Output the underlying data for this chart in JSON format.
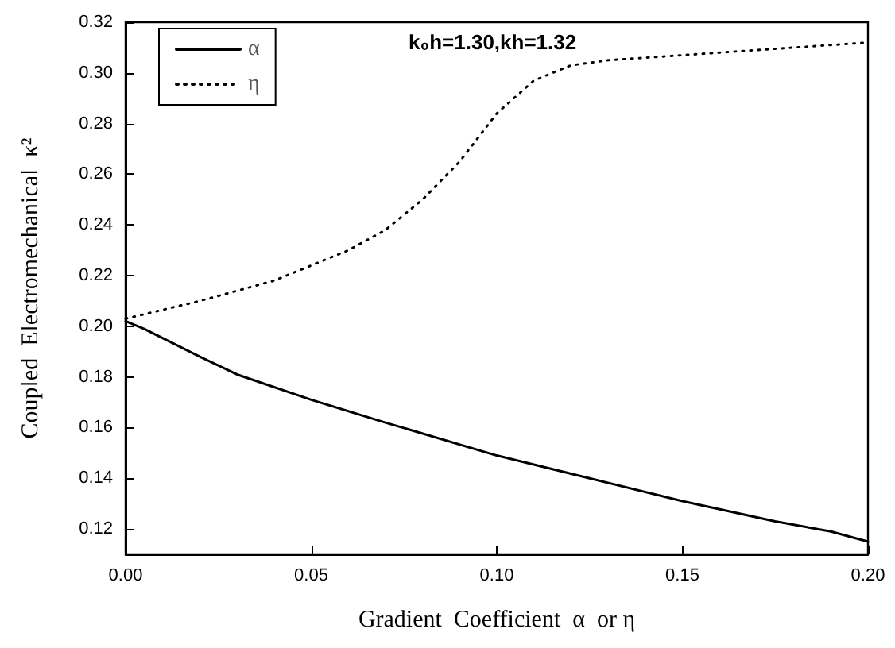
{
  "chart_data": {
    "type": "line",
    "xlabel": "Gradient  Coefficient  α  or η",
    "ylabel": "Coupled  Electromechanical  κ²",
    "annotations": [
      "k₀h=1.30,kh=1.32"
    ],
    "xlim": [
      0,
      0.2
    ],
    "xticks": [
      {
        "value": 0,
        "label": "0.00"
      },
      0.05,
      {
        "value": 0.1,
        "label": "0.10"
      },
      0.15,
      {
        "value": 0.2,
        "label": "0.20"
      }
    ],
    "ylim": [
      0.11,
      0.32
    ],
    "yticks": [
      0.12,
      0.14,
      0.16,
      0.18,
      {
        "value": 0.2,
        "label": "0.20"
      },
      0.22,
      0.24,
      0.26,
      0.28,
      {
        "value": 0.3,
        "label": "0.30"
      },
      0.32
    ],
    "grid": false,
    "legend": "top left",
    "marker": "none",
    "series": [
      {
        "name": "α",
        "color": "#000000",
        "line_style": "solid",
        "x": [
          0,
          0.005,
          0.02,
          0.03,
          0.05,
          0.07,
          0.1,
          0.125,
          0.15,
          0.175,
          0.19,
          0.2
        ],
        "values": [
          0.202,
          0.199,
          0.188,
          0.181,
          0.171,
          0.162,
          0.149,
          0.14,
          0.131,
          0.123,
          0.119,
          0.115
        ]
      },
      {
        "name": "η",
        "color": "#000000",
        "line_style": "dotted",
        "x": [
          0,
          0.02,
          0.04,
          0.06,
          0.07,
          0.08,
          0.09,
          0.1,
          0.11,
          0.12,
          0.13,
          0.15,
          0.17,
          0.2
        ],
        "values": [
          0.203,
          0.21,
          0.218,
          0.23,
          0.238,
          0.25,
          0.265,
          0.284,
          0.297,
          0.303,
          0.305,
          0.307,
          0.309,
          0.312
        ]
      }
    ]
  }
}
